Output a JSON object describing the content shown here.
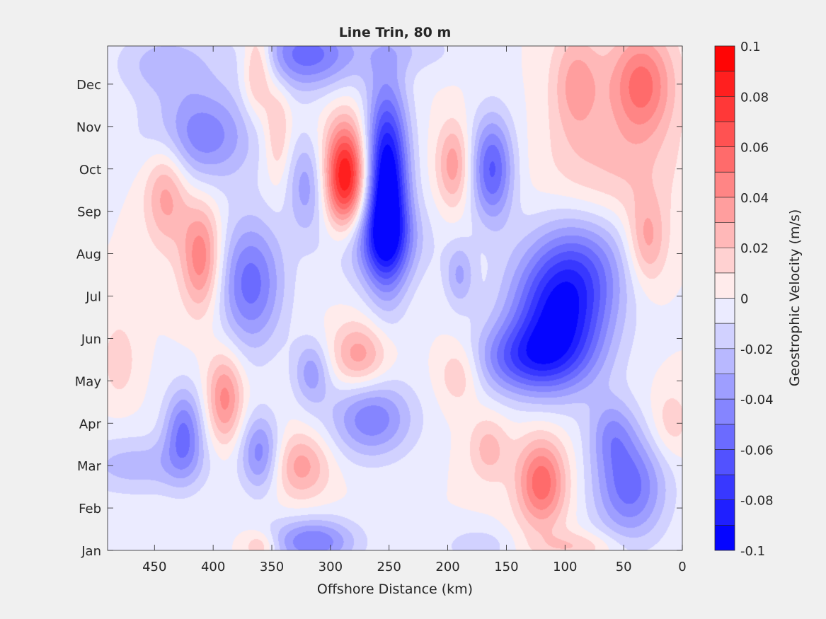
{
  "chart_data": {
    "type": "heatmap",
    "title": "Line Trin, 80 m",
    "xlabel": "Offshore Distance (km)",
    "ylabel": "",
    "x_direction": "reversed",
    "xlim": [
      490,
      0
    ],
    "ylim": [
      1,
      12.9
    ],
    "x_ticks": [
      450,
      400,
      350,
      300,
      250,
      200,
      150,
      100,
      50,
      0
    ],
    "y_ticks": [
      {
        "value": 1,
        "label": "Jan"
      },
      {
        "value": 2,
        "label": "Feb"
      },
      {
        "value": 3,
        "label": "Mar"
      },
      {
        "value": 4,
        "label": "Apr"
      },
      {
        "value": 5,
        "label": "May"
      },
      {
        "value": 6,
        "label": "Jun"
      },
      {
        "value": 7,
        "label": "Jul"
      },
      {
        "value": 8,
        "label": "Aug"
      },
      {
        "value": 9,
        "label": "Sep"
      },
      {
        "value": 10,
        "label": "Oct"
      },
      {
        "value": 11,
        "label": "Nov"
      },
      {
        "value": 12,
        "label": "Dec"
      }
    ],
    "colorbar": {
      "label": "Geostrophic Velocity (m/s)",
      "range": [
        -0.1,
        0.1
      ],
      "levels": [
        -0.1,
        -0.09,
        -0.08,
        -0.07,
        -0.06,
        -0.05,
        -0.04,
        -0.03,
        -0.02,
        -0.01,
        0,
        0.01,
        0.02,
        0.03,
        0.04,
        0.05,
        0.06,
        0.07,
        0.08,
        0.09,
        0.1
      ],
      "tick_values": [
        0.1,
        0.08,
        0.06,
        0.04,
        0.02,
        0,
        -0.02,
        -0.04,
        -0.06,
        -0.08,
        -0.1
      ],
      "tick_labels": [
        "0.1",
        "0.08",
        "0.06",
        "0.04",
        "0.02",
        "0",
        "-0.02",
        "-0.04",
        "-0.06",
        "-0.08",
        "-0.1"
      ],
      "colormap": "blue-white-red",
      "color_min": "#0000ff",
      "color_max": "#ff0000",
      "color_zero": "#ffffff"
    },
    "features": [
      {
        "x": 287,
        "y": 9.8,
        "sx": 13,
        "sy": 0.9,
        "amp": 0.095
      },
      {
        "x": 252,
        "y": 9.6,
        "sx": 13,
        "sy": 1.6,
        "amp": -0.11
      },
      {
        "x": 260,
        "y": 8.3,
        "sx": 28,
        "sy": 0.7,
        "amp": -0.04
      },
      {
        "x": 105,
        "y": 6.5,
        "sx": 30,
        "sy": 1.1,
        "amp": -0.085
      },
      {
        "x": 135,
        "y": 5.5,
        "sx": 32,
        "sy": 0.6,
        "amp": -0.05
      },
      {
        "x": 85,
        "y": 7.8,
        "sx": 30,
        "sy": 0.9,
        "amp": -0.035
      },
      {
        "x": 162,
        "y": 10.0,
        "sx": 13,
        "sy": 0.9,
        "amp": -0.062
      },
      {
        "x": 320,
        "y": 12.7,
        "sx": 32,
        "sy": 0.6,
        "amp": -0.055
      },
      {
        "x": 410,
        "y": 10.8,
        "sx": 32,
        "sy": 0.8,
        "amp": -0.048
      },
      {
        "x": 368,
        "y": 7.3,
        "sx": 20,
        "sy": 1.1,
        "amp": -0.055
      },
      {
        "x": 320,
        "y": 9.6,
        "sx": 12,
        "sy": 0.8,
        "amp": -0.035
      },
      {
        "x": 316,
        "y": 5.2,
        "sx": 11,
        "sy": 0.55,
        "amp": -0.035
      },
      {
        "x": 265,
        "y": 4.1,
        "sx": 25,
        "sy": 0.65,
        "amp": -0.048
      },
      {
        "x": 425,
        "y": 3.8,
        "sx": 12,
        "sy": 0.75,
        "amp": -0.05
      },
      {
        "x": 360,
        "y": 3.3,
        "sx": 12,
        "sy": 0.65,
        "amp": -0.045
      },
      {
        "x": 465,
        "y": 3.0,
        "sx": 40,
        "sy": 0.5,
        "amp": -0.025
      },
      {
        "x": 45,
        "y": 2.5,
        "sx": 22,
        "sy": 0.9,
        "amp": -0.055
      },
      {
        "x": 315,
        "y": 1.2,
        "sx": 26,
        "sy": 0.4,
        "amp": -0.05
      },
      {
        "x": 190,
        "y": 7.5,
        "sx": 9,
        "sy": 0.55,
        "amp": -0.03
      },
      {
        "x": 175,
        "y": 1.1,
        "sx": 20,
        "sy": 0.3,
        "amp": -0.018
      },
      {
        "x": 440,
        "y": 9.5,
        "sx": 13,
        "sy": 0.9,
        "amp": 0.038
      },
      {
        "x": 410,
        "y": 7.9,
        "sx": 12,
        "sy": 0.9,
        "amp": 0.05
      },
      {
        "x": 362,
        "y": 12.4,
        "sx": 9,
        "sy": 0.75,
        "amp": 0.04
      },
      {
        "x": 345,
        "y": 10.9,
        "sx": 8,
        "sy": 0.9,
        "amp": 0.025
      },
      {
        "x": 390,
        "y": 4.6,
        "sx": 11,
        "sy": 0.75,
        "amp": 0.045
      },
      {
        "x": 275,
        "y": 5.6,
        "sx": 17,
        "sy": 0.55,
        "amp": 0.037
      },
      {
        "x": 195,
        "y": 10.1,
        "sx": 10,
        "sy": 0.7,
        "amp": 0.037
      },
      {
        "x": 190,
        "y": 5.2,
        "sx": 13,
        "sy": 0.55,
        "amp": 0.025
      },
      {
        "x": 165,
        "y": 3.4,
        "sx": 12,
        "sy": 0.55,
        "amp": 0.025
      },
      {
        "x": 120,
        "y": 2.6,
        "sx": 15,
        "sy": 0.75,
        "amp": 0.058
      },
      {
        "x": 325,
        "y": 3.0,
        "sx": 17,
        "sy": 0.55,
        "amp": 0.035
      },
      {
        "x": 35,
        "y": 12.0,
        "sx": 20,
        "sy": 0.9,
        "amp": 0.055
      },
      {
        "x": 90,
        "y": 12.0,
        "sx": 15,
        "sy": 0.9,
        "amp": 0.035
      },
      {
        "x": 30,
        "y": 8.3,
        "sx": 12,
        "sy": 0.75,
        "amp": 0.035
      },
      {
        "x": 60,
        "y": 10.0,
        "sx": 40,
        "sy": 0.9,
        "amp": 0.02
      },
      {
        "x": 480,
        "y": 5.5,
        "sx": 10,
        "sy": 0.65,
        "amp": 0.018
      },
      {
        "x": 360,
        "y": 1.1,
        "sx": 10,
        "sy": 0.25,
        "amp": 0.025
      },
      {
        "x": 90,
        "y": 1.1,
        "sx": 25,
        "sy": 0.25,
        "amp": 0.02
      },
      {
        "x": 440,
        "y": 12.5,
        "sx": 30,
        "sy": 0.55,
        "amp": -0.025
      },
      {
        "x": 230,
        "y": 12.8,
        "sx": 30,
        "sy": 0.4,
        "amp": -0.015
      },
      {
        "x": 60,
        "y": 3.8,
        "sx": 14,
        "sy": 0.6,
        "amp": -0.03
      },
      {
        "x": 10,
        "y": 4.0,
        "sx": 12,
        "sy": 0.6,
        "amp": 0.018
      }
    ]
  }
}
